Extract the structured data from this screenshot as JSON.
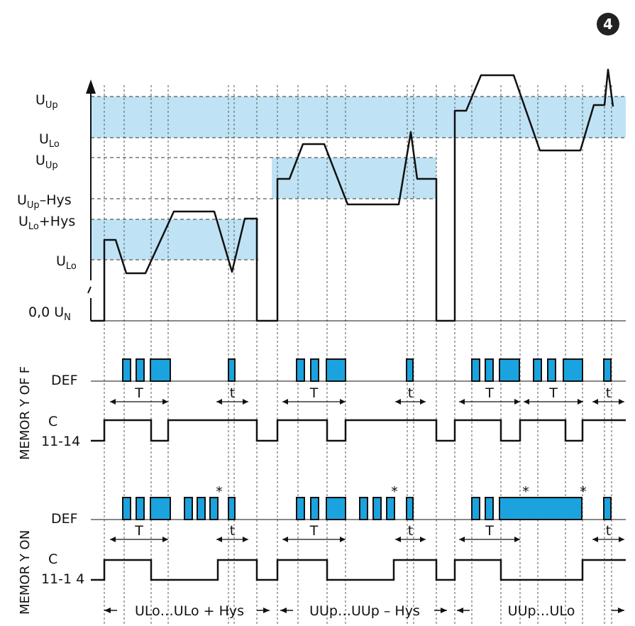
{
  "badge": "4",
  "colors": {
    "band": "#bfe3f4",
    "pulse": "#1aa3de",
    "line": "#111111"
  },
  "voltage_labels": {
    "r1_up": {
      "main": "U",
      "sub": "Up"
    },
    "r1_lo": {
      "main": "U",
      "sub": "Lo"
    },
    "r2_up": {
      "main": "U",
      "sub": "Up"
    },
    "r2_hys": {
      "main": "U",
      "sub": "Up",
      "tail": "–Hys"
    },
    "r3_hys": {
      "main": "U",
      "sub": "Lo",
      "tail": "+Hys"
    },
    "r3_lo": {
      "main": "U",
      "sub": "Lo"
    },
    "zero": {
      "main": "0,0  U",
      "sub": "N"
    }
  },
  "section_off": {
    "title": "MEMOR Y OF F",
    "def": "DEF",
    "relay_line1": "C",
    "relay_line2": "11-14"
  },
  "section_on": {
    "title": "MEMOR Y ON",
    "def": "DEF",
    "relay_line1": "C",
    "relay_line2": "11-1 4"
  },
  "timing": {
    "long": "T",
    "short": "t",
    "star": "*"
  },
  "ranges": [
    "ULo…ULo + Hys",
    "UUp…UUp – Hys",
    "UUp…ULo"
  ]
}
